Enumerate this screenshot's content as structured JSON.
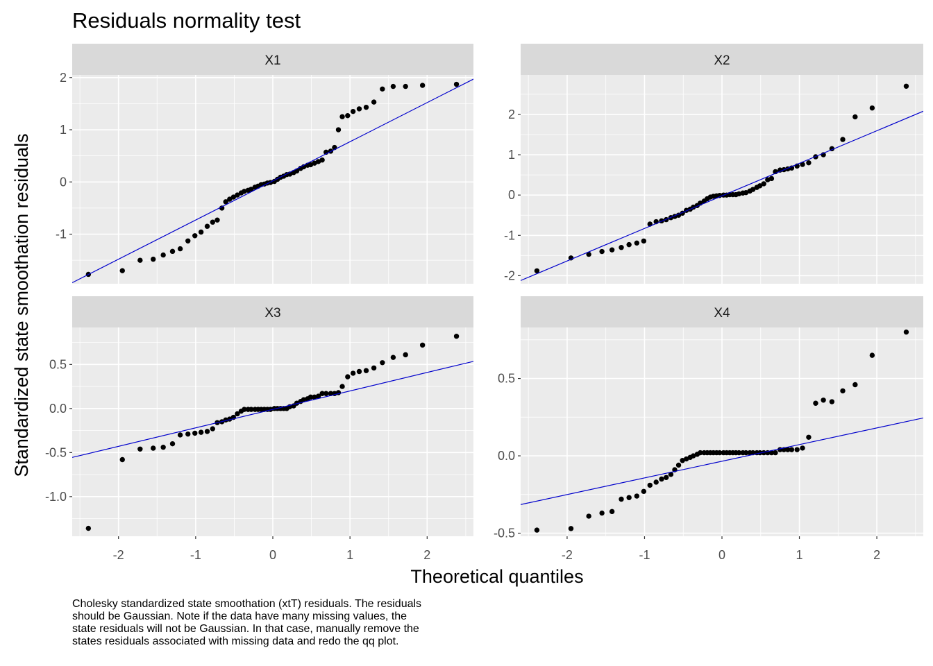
{
  "title": "Residuals normality test",
  "xlabel": "Theoretical quantiles",
  "ylabel": "Standardized state smoothation residuals",
  "caption_lines": [
    "Cholesky standardized state smoothation (xtT) residuals. The residuals",
    "should be Gaussian. Note if the data have many missing values, the",
    "state residuals will not be Gaussian. In that case, manually remove the",
    "states residuals associated with missing data and redo the qq plot."
  ],
  "colors": {
    "panel_bg": "#EBEBEB",
    "strip_bg": "#D9D9D9",
    "grid": "#FFFFFF",
    "points": "#000000",
    "line": "#0000CC",
    "axis_text": "#4D4D4D"
  },
  "chart_data": [
    {
      "type": "scatter",
      "panel": "X1",
      "xlim": [
        -2.6,
        2.6
      ],
      "ylim": [
        -1.95,
        2.05
      ],
      "x_ticks": [
        -2,
        -1,
        0,
        1,
        2
      ],
      "x_tick_labels": [
        "-2",
        "-1",
        "0",
        "1",
        "2"
      ],
      "y_ticks": [
        -1,
        0,
        1,
        2
      ],
      "y_tick_labels": [
        "-1",
        "0",
        "1",
        "2"
      ],
      "grid": true,
      "reference_line": {
        "x1": -2.6,
        "y1": -1.93,
        "x2": 2.6,
        "y2": 1.97
      },
      "points": [
        [
          -2.39,
          -1.77
        ],
        [
          -1.95,
          -1.7
        ],
        [
          -1.72,
          -1.5
        ],
        [
          -1.55,
          -1.48
        ],
        [
          -1.42,
          -1.4
        ],
        [
          -1.3,
          -1.33
        ],
        [
          -1.2,
          -1.28
        ],
        [
          -1.1,
          -1.13
        ],
        [
          -1.01,
          -1.03
        ],
        [
          -0.93,
          -0.96
        ],
        [
          -0.85,
          -0.85
        ],
        [
          -0.78,
          -0.77
        ],
        [
          -0.72,
          -0.73
        ],
        [
          -0.66,
          -0.5
        ],
        [
          -0.61,
          -0.38
        ],
        [
          -0.56,
          -0.33
        ],
        [
          -0.51,
          -0.29
        ],
        [
          -0.46,
          -0.25
        ],
        [
          -0.41,
          -0.21
        ],
        [
          -0.37,
          -0.18
        ],
        [
          -0.32,
          -0.16
        ],
        [
          -0.28,
          -0.14
        ],
        [
          -0.23,
          -0.1
        ],
        [
          -0.19,
          -0.08
        ],
        [
          -0.15,
          -0.05
        ],
        [
          -0.11,
          -0.04
        ],
        [
          -0.07,
          -0.02
        ],
        [
          -0.03,
          -0.01
        ],
        [
          0.02,
          0.01
        ],
        [
          0.06,
          0.05
        ],
        [
          0.1,
          0.09
        ],
        [
          0.14,
          0.11
        ],
        [
          0.18,
          0.14
        ],
        [
          0.22,
          0.15
        ],
        [
          0.27,
          0.18
        ],
        [
          0.31,
          0.21
        ],
        [
          0.36,
          0.26
        ],
        [
          0.4,
          0.29
        ],
        [
          0.45,
          0.32
        ],
        [
          0.49,
          0.33
        ],
        [
          0.54,
          0.36
        ],
        [
          0.59,
          0.39
        ],
        [
          0.64,
          0.42
        ],
        [
          0.69,
          0.57
        ],
        [
          0.75,
          0.59
        ],
        [
          0.8,
          0.66
        ],
        [
          0.85,
          1.0
        ],
        [
          0.9,
          1.25
        ],
        [
          0.97,
          1.27
        ],
        [
          1.04,
          1.35
        ],
        [
          1.12,
          1.4
        ],
        [
          1.21,
          1.43
        ],
        [
          1.31,
          1.53
        ],
        [
          1.42,
          1.78
        ],
        [
          1.56,
          1.83
        ],
        [
          1.72,
          1.83
        ],
        [
          1.94,
          1.85
        ],
        [
          2.38,
          1.87
        ]
      ]
    },
    {
      "type": "scatter",
      "panel": "X2",
      "xlim": [
        -2.6,
        2.6
      ],
      "ylim": [
        -2.2,
        2.98
      ],
      "x_ticks": [
        -2,
        -1,
        0,
        1,
        2
      ],
      "x_tick_labels": [
        "-2",
        "-1",
        "0",
        "1",
        "2"
      ],
      "y_ticks": [
        -2,
        -1,
        0,
        1,
        2
      ],
      "y_tick_labels": [
        "-2",
        "-1",
        "0",
        "1",
        "2"
      ],
      "grid": true,
      "reference_line": {
        "x1": -2.6,
        "y1": -2.12,
        "x2": 2.6,
        "y2": 2.08
      },
      "points": [
        [
          -2.39,
          -1.88
        ],
        [
          -1.95,
          -1.56
        ],
        [
          -1.72,
          -1.47
        ],
        [
          -1.55,
          -1.4
        ],
        [
          -1.42,
          -1.36
        ],
        [
          -1.3,
          -1.3
        ],
        [
          -1.2,
          -1.23
        ],
        [
          -1.1,
          -1.19
        ],
        [
          -1.01,
          -1.14
        ],
        [
          -0.93,
          -0.72
        ],
        [
          -0.85,
          -0.66
        ],
        [
          -0.78,
          -0.64
        ],
        [
          -0.72,
          -0.61
        ],
        [
          -0.66,
          -0.56
        ],
        [
          -0.61,
          -0.53
        ],
        [
          -0.56,
          -0.5
        ],
        [
          -0.51,
          -0.45
        ],
        [
          -0.46,
          -0.38
        ],
        [
          -0.41,
          -0.35
        ],
        [
          -0.37,
          -0.3
        ],
        [
          -0.32,
          -0.26
        ],
        [
          -0.28,
          -0.2
        ],
        [
          -0.23,
          -0.15
        ],
        [
          -0.19,
          -0.09
        ],
        [
          -0.15,
          -0.05
        ],
        [
          -0.11,
          -0.03
        ],
        [
          -0.07,
          -0.02
        ],
        [
          -0.03,
          -0.01
        ],
        [
          0.02,
          0.0
        ],
        [
          0.06,
          0.0
        ],
        [
          0.1,
          0.01
        ],
        [
          0.14,
          0.01
        ],
        [
          0.18,
          0.01
        ],
        [
          0.22,
          0.03
        ],
        [
          0.27,
          0.05
        ],
        [
          0.31,
          0.06
        ],
        [
          0.36,
          0.1
        ],
        [
          0.4,
          0.14
        ],
        [
          0.45,
          0.19
        ],
        [
          0.49,
          0.23
        ],
        [
          0.54,
          0.28
        ],
        [
          0.59,
          0.38
        ],
        [
          0.64,
          0.41
        ],
        [
          0.69,
          0.58
        ],
        [
          0.75,
          0.62
        ],
        [
          0.8,
          0.63
        ],
        [
          0.85,
          0.65
        ],
        [
          0.9,
          0.67
        ],
        [
          0.97,
          0.72
        ],
        [
          1.04,
          0.76
        ],
        [
          1.12,
          0.8
        ],
        [
          1.21,
          0.95
        ],
        [
          1.31,
          1.0
        ],
        [
          1.42,
          1.15
        ],
        [
          1.56,
          1.38
        ],
        [
          1.72,
          1.94
        ],
        [
          1.94,
          2.16
        ],
        [
          2.38,
          2.7
        ]
      ]
    },
    {
      "type": "scatter",
      "panel": "X3",
      "xlim": [
        -2.6,
        2.6
      ],
      "ylim": [
        -1.45,
        0.92
      ],
      "x_ticks": [
        -2,
        -1,
        0,
        1,
        2
      ],
      "x_tick_labels": [
        "-2",
        "-1",
        "0",
        "1",
        "2"
      ],
      "y_ticks": [
        -1.0,
        -0.5,
        0.0,
        0.5
      ],
      "y_tick_labels": [
        "-1.0",
        "-0.5",
        "0.0",
        "0.5"
      ],
      "grid": true,
      "reference_line": {
        "x1": -2.6,
        "y1": -0.555,
        "x2": 2.6,
        "y2": 0.535
      },
      "points": [
        [
          -2.39,
          -1.36
        ],
        [
          -1.95,
          -0.58
        ],
        [
          -1.72,
          -0.46
        ],
        [
          -1.55,
          -0.45
        ],
        [
          -1.42,
          -0.44
        ],
        [
          -1.3,
          -0.4
        ],
        [
          -1.2,
          -0.3
        ],
        [
          -1.1,
          -0.29
        ],
        [
          -1.01,
          -0.28
        ],
        [
          -0.93,
          -0.27
        ],
        [
          -0.85,
          -0.26
        ],
        [
          -0.78,
          -0.23
        ],
        [
          -0.72,
          -0.16
        ],
        [
          -0.66,
          -0.15
        ],
        [
          -0.61,
          -0.13
        ],
        [
          -0.56,
          -0.12
        ],
        [
          -0.51,
          -0.1
        ],
        [
          -0.46,
          -0.06
        ],
        [
          -0.41,
          -0.03
        ],
        [
          -0.37,
          -0.01
        ],
        [
          -0.32,
          -0.01
        ],
        [
          -0.28,
          -0.01
        ],
        [
          -0.23,
          -0.01
        ],
        [
          -0.19,
          -0.01
        ],
        [
          -0.15,
          -0.01
        ],
        [
          -0.11,
          -0.01
        ],
        [
          -0.07,
          -0.01
        ],
        [
          -0.03,
          -0.01
        ],
        [
          0.02,
          0.0
        ],
        [
          0.06,
          0.0
        ],
        [
          0.1,
          0.0
        ],
        [
          0.14,
          0.0
        ],
        [
          0.18,
          0.0
        ],
        [
          0.22,
          0.02
        ],
        [
          0.27,
          0.03
        ],
        [
          0.31,
          0.06
        ],
        [
          0.36,
          0.08
        ],
        [
          0.4,
          0.1
        ],
        [
          0.45,
          0.11
        ],
        [
          0.49,
          0.13
        ],
        [
          0.54,
          0.13
        ],
        [
          0.59,
          0.14
        ],
        [
          0.64,
          0.17
        ],
        [
          0.69,
          0.17
        ],
        [
          0.75,
          0.17
        ],
        [
          0.8,
          0.17
        ],
        [
          0.85,
          0.18
        ],
        [
          0.9,
          0.25
        ],
        [
          0.97,
          0.36
        ],
        [
          1.04,
          0.4
        ],
        [
          1.12,
          0.42
        ],
        [
          1.21,
          0.43
        ],
        [
          1.31,
          0.46
        ],
        [
          1.42,
          0.52
        ],
        [
          1.56,
          0.58
        ],
        [
          1.72,
          0.61
        ],
        [
          1.94,
          0.72
        ],
        [
          2.38,
          0.82
        ]
      ]
    },
    {
      "type": "scatter",
      "panel": "X4",
      "xlim": [
        -2.6,
        2.6
      ],
      "ylim": [
        -0.52,
        0.83
      ],
      "x_ticks": [
        -2,
        -1,
        0,
        1,
        2
      ],
      "x_tick_labels": [
        "-2",
        "-1",
        "0",
        "1",
        "2"
      ],
      "y_ticks": [
        -0.5,
        0.0,
        0.5
      ],
      "y_tick_labels": [
        "-0.5",
        "0.0",
        "0.5"
      ],
      "grid": true,
      "reference_line": {
        "x1": -2.6,
        "y1": -0.315,
        "x2": 2.6,
        "y2": 0.245
      },
      "points": [
        [
          -2.39,
          -0.48
        ],
        [
          -1.95,
          -0.47
        ],
        [
          -1.72,
          -0.39
        ],
        [
          -1.55,
          -0.37
        ],
        [
          -1.42,
          -0.36
        ],
        [
          -1.3,
          -0.28
        ],
        [
          -1.2,
          -0.27
        ],
        [
          -1.1,
          -0.26
        ],
        [
          -1.01,
          -0.23
        ],
        [
          -0.93,
          -0.19
        ],
        [
          -0.85,
          -0.17
        ],
        [
          -0.78,
          -0.15
        ],
        [
          -0.72,
          -0.14
        ],
        [
          -0.66,
          -0.12
        ],
        [
          -0.61,
          -0.09
        ],
        [
          -0.56,
          -0.06
        ],
        [
          -0.51,
          -0.03
        ],
        [
          -0.46,
          -0.02
        ],
        [
          -0.41,
          -0.01
        ],
        [
          -0.37,
          0.0
        ],
        [
          -0.32,
          0.01
        ],
        [
          -0.28,
          0.02
        ],
        [
          -0.23,
          0.02
        ],
        [
          -0.19,
          0.02
        ],
        [
          -0.15,
          0.02
        ],
        [
          -0.11,
          0.02
        ],
        [
          -0.07,
          0.02
        ],
        [
          -0.03,
          0.02
        ],
        [
          0.02,
          0.02
        ],
        [
          0.06,
          0.02
        ],
        [
          0.1,
          0.02
        ],
        [
          0.14,
          0.02
        ],
        [
          0.18,
          0.02
        ],
        [
          0.22,
          0.02
        ],
        [
          0.27,
          0.02
        ],
        [
          0.31,
          0.02
        ],
        [
          0.36,
          0.02
        ],
        [
          0.4,
          0.02
        ],
        [
          0.45,
          0.02
        ],
        [
          0.49,
          0.02
        ],
        [
          0.54,
          0.02
        ],
        [
          0.59,
          0.02
        ],
        [
          0.64,
          0.02
        ],
        [
          0.69,
          0.02
        ],
        [
          0.75,
          0.04
        ],
        [
          0.8,
          0.04
        ],
        [
          0.85,
          0.04
        ],
        [
          0.9,
          0.04
        ],
        [
          0.97,
          0.04
        ],
        [
          1.04,
          0.05
        ],
        [
          1.12,
          0.12
        ],
        [
          1.21,
          0.34
        ],
        [
          1.31,
          0.36
        ],
        [
          1.42,
          0.35
        ],
        [
          1.56,
          0.42
        ],
        [
          1.72,
          0.46
        ],
        [
          1.94,
          0.65
        ],
        [
          2.38,
          0.8
        ]
      ]
    }
  ]
}
